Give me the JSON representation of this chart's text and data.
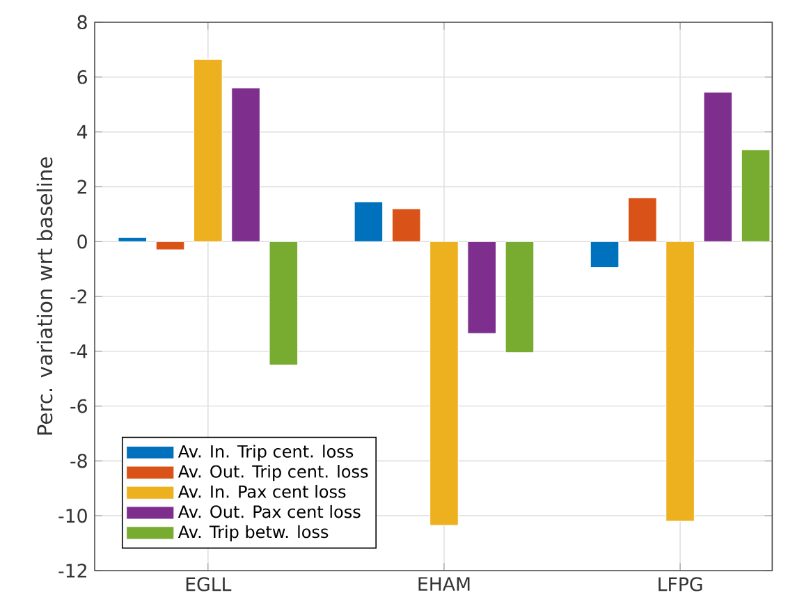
{
  "chart_data": {
    "type": "bar",
    "ylabel": "Perc. variation wrt baseline",
    "categories": [
      "EGLL",
      "EHAM",
      "LFPG"
    ],
    "series": [
      {
        "name": "Av. In. Trip cent. loss",
        "color": "#0072bd",
        "values": [
          0.15,
          1.45,
          -0.95
        ]
      },
      {
        "name": "Av. Out. Trip cent. loss",
        "color": "#d95319",
        "values": [
          -0.3,
          1.2,
          1.6
        ]
      },
      {
        "name": "Av. In. Pax cent loss",
        "color": "#edb120",
        "values": [
          6.65,
          -10.35,
          -10.2
        ]
      },
      {
        "name": "Av. Out. Pax cent loss",
        "color": "#7e2f8e",
        "values": [
          5.6,
          -3.35,
          5.45
        ]
      },
      {
        "name": "Av. Trip betw. loss",
        "color": "#77ac30",
        "values": [
          -4.5,
          -4.05,
          3.35
        ]
      }
    ],
    "ylim": [
      -12,
      8
    ],
    "yticks": [
      -12,
      -10,
      -8,
      -6,
      -4,
      -2,
      0,
      2,
      4,
      6,
      8
    ],
    "grid": true,
    "legend": "bottom left"
  }
}
